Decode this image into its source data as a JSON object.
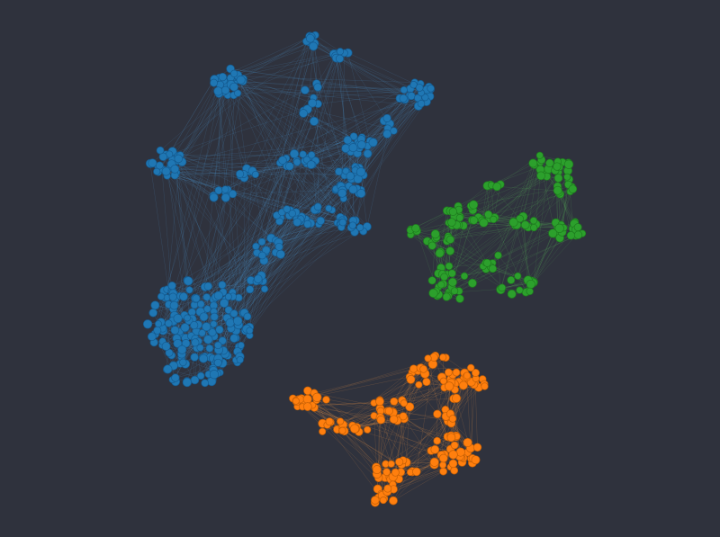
{
  "graph": {
    "background": "#2f323d",
    "communities": [
      {
        "name": "",
        "fill": "#1f77b4",
        "stroke": "#155a8f",
        "edge_color": "#4f9bd6"
      },
      {
        "name": "",
        "fill": "#2ca02c",
        "stroke": "#1e7a1e",
        "edge_color": "#5cc05c"
      },
      {
        "name": "",
        "fill": "#ff7f0e",
        "stroke": "#c45f06",
        "edge_color": "#ff9f4a"
      }
    ]
  }
}
